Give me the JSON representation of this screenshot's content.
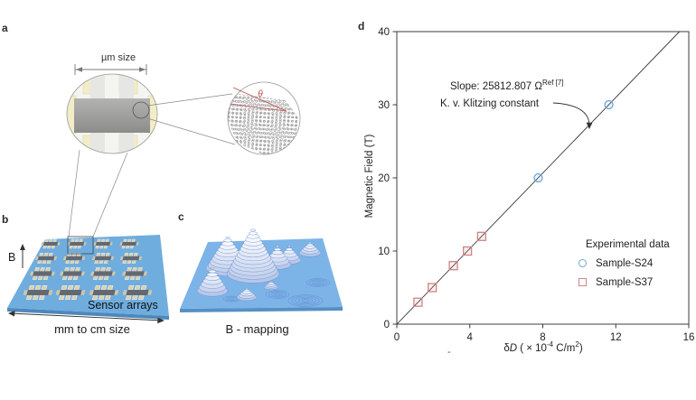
{
  "figure": {
    "background": "#ffffff",
    "panels": {
      "a": {
        "letter": "a",
        "scale_label": "µm size",
        "theta_label": "θ"
      },
      "b": {
        "letter": "b",
        "field_label": "B",
        "overlay_label": "Sensor arrays",
        "scale_label": "mm to cm size"
      },
      "c": {
        "letter": "c",
        "caption": "B - mapping"
      },
      "d": {
        "letter": "d"
      }
    },
    "stray_mark": "-",
    "colors": {
      "plate_blue": "#6fadde",
      "plate_edge_blue": "#4d88bd",
      "map_blue": "#7db4e8",
      "contour_blue": "#6d95cd",
      "pad_yellow": "#f2edc6",
      "device_bar_gray": "#9a9a98",
      "lead_gray": "#e6e6e4",
      "angle_red": "#c0504d"
    }
  },
  "chart_data": {
    "type": "scatter",
    "title": "",
    "ylabel": "Magnetic Field (T)",
    "xlabel_parts": {
      "delta": "δ",
      "variable": "D",
      "open": " ( × 10",
      "exponent": "-4",
      "unit": " C/m",
      "unit_exponent": "2",
      "close": ")"
    },
    "xlim": [
      0,
      16
    ],
    "ylim": [
      0,
      40
    ],
    "x_ticks": [
      0,
      4,
      8,
      12,
      16
    ],
    "y_ticks": [
      0,
      10,
      20,
      30,
      40
    ],
    "grid": false,
    "annotation": {
      "line1": "Slope: 25812.807 Ω",
      "line1_sup": "Ref [7]",
      "line2": "K. v. Klitzing constant"
    },
    "legend": {
      "title": "Experimental data",
      "position": "lower right",
      "items": [
        {
          "label": "Sample-S24",
          "marker": "circle",
          "color": "#6aa7d8"
        },
        {
          "label": "Sample-S37",
          "marker": "square",
          "color": "#d08585"
        }
      ]
    },
    "fit_line": {
      "x": [
        0,
        15.49
      ],
      "y": [
        0,
        40
      ],
      "color": "#3a3a3a"
    },
    "series": [
      {
        "name": "Sample-S24",
        "marker": "circle",
        "color": "#6aa7d8",
        "points": [
          [
            7.75,
            20
          ],
          [
            11.62,
            30
          ]
        ]
      },
      {
        "name": "Sample-S37",
        "marker": "square",
        "color": "#d08585",
        "points": [
          [
            1.16,
            3
          ],
          [
            1.94,
            5
          ],
          [
            3.1,
            8
          ],
          [
            3.87,
            10
          ],
          [
            4.65,
            12
          ]
        ]
      }
    ]
  }
}
